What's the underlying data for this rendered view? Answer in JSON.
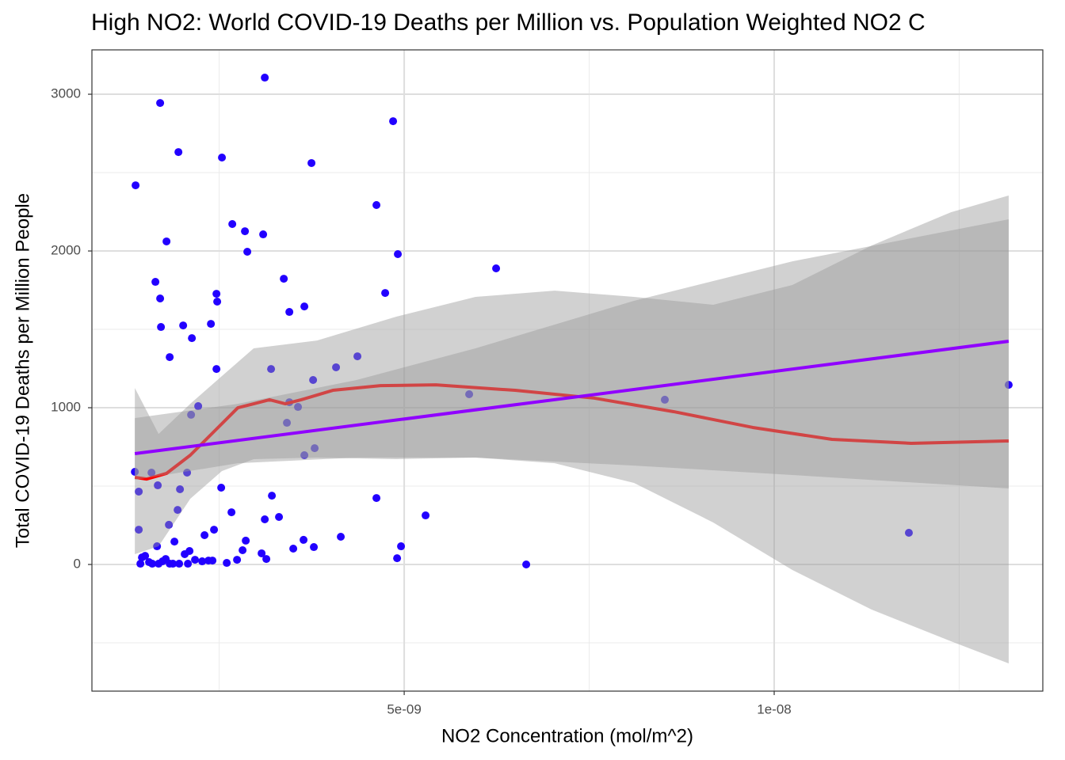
{
  "chart_data": {
    "type": "scatter",
    "title": "High NO2: World COVID-19 Deaths per Million vs. Population Weighted NO2 C",
    "x_label": "NO2 Concentration (mol/m^2)",
    "y_label": "Total COVID-19 Deaths per Million People",
    "xlim": [
      7.8e-10,
      1.363e-08
    ],
    "ylim": [
      -808,
      3283
    ],
    "xticks": [
      {
        "value": 5e-09,
        "label": "5e-09"
      },
      {
        "value": 1e-08,
        "label": "1e-08"
      }
    ],
    "yticks": [
      0,
      1000,
      2000,
      3000
    ],
    "x_minor_grid": [
      2.5e-09,
      7.5e-09,
      1.25e-08
    ],
    "y_minor_grid": [
      -500,
      500,
      1500,
      2500
    ],
    "grid": true,
    "points": {
      "color": "#2200ff",
      "x": [
        1.36e-09,
        1.37e-09,
        1.413e-09,
        1.413e-09,
        1.435e-09,
        1.456e-09,
        1.499e-09,
        1.552e-09,
        1.585e-09,
        1.595e-09,
        1.638e-09,
        1.66e-09,
        1.67e-09,
        1.681e-09,
        1.702e-09,
        1.702e-09,
        1.713e-09,
        1.734e-09,
        1.777e-09,
        1.788e-09,
        1.82e-09,
        1.831e-09,
        1.831e-09,
        1.874e-09,
        1.895e-09,
        1.938e-09,
        1.949e-09,
        1.959e-09,
        1.97e-09,
        2.013e-09,
        2.034e-09,
        2.066e-09,
        2.077e-09,
        2.099e-09,
        2.12e-09,
        2.131e-09,
        2.173e-09,
        2.216e-09,
        2.27e-09,
        2.302e-09,
        2.355e-09,
        2.388e-09,
        2.409e-09,
        2.43e-09,
        2.463e-09,
        2.463e-09,
        2.473e-09,
        2.527e-09,
        2.537e-09,
        2.602e-09,
        2.666e-09,
        2.677e-09,
        2.741e-09,
        2.816e-09,
        2.848e-09,
        2.859e-09,
        2.88e-09,
        3.073e-09,
        3.094e-09,
        3.116e-09,
        3.116e-09,
        3.137e-09,
        3.201e-09,
        3.212e-09,
        3.308e-09,
        3.373e-09,
        3.415e-09,
        3.448e-09,
        3.448e-09,
        3.501e-09,
        3.565e-09,
        3.64e-09,
        3.651e-09,
        3.651e-09,
        3.747e-09,
        3.769e-09,
        3.779e-09,
        3.79e-09,
        4.079e-09,
        4.143e-09,
        4.368e-09,
        4.625e-09,
        4.625e-09,
        4.743e-09,
        4.85e-09,
        4.904e-09,
        4.914e-09,
        4.957e-09,
        5.289e-09,
        5.878e-09,
        6.242e-09,
        6.649e-09,
        8.522e-09,
        1.182e-08,
        1.3169e-08
      ],
      "values": [
        591,
        2419,
        465,
        222,
        5,
        45,
        55,
        15,
        586,
        5,
        1803,
        116,
        505,
        5,
        1697,
        2944,
        1515,
        20,
        35,
        2061,
        253,
        1323,
        5,
        5,
        146,
        348,
        2631,
        5,
        480,
        1525,
        66,
        586,
        5,
        86,
        955,
        1444,
        30,
        1010,
        20,
        187,
        25,
        1535,
        25,
        222,
        1727,
        1247,
        1677,
        490,
        2596,
        10,
        333,
        2172,
        30,
        91,
        2126,
        152,
        1995,
        71,
        2106,
        3106,
        288,
        35,
        1247,
        439,
        303,
        1823,
        904,
        1611,
        1035,
        101,
        1005,
        157,
        697,
        1646,
        2561,
        1177,
        111,
        742,
        1258,
        177,
        1328,
        2293,
        424,
        1732,
        2828,
        40,
        1980,
        116,
        313,
        1086,
        1889,
        0,
        1051,
        202,
        1146
      ]
    },
    "loess": {
      "color": "#ff0000",
      "x": [
        1.36e-09,
        1.52e-09,
        1.788e-09,
        2.109e-09,
        2.43e-09,
        2.752e-09,
        2.966e-09,
        3.18e-09,
        3.394e-09,
        3.608e-09,
        4.036e-09,
        4.679e-09,
        5.428e-09,
        6.499e-09,
        7.57e-09,
        8.64e-09,
        9.711e-09,
        1.0782e-08,
        1.1852e-08,
        1.3169e-08
      ],
      "values": [
        556,
        545,
        581,
        697,
        848,
        1000,
        1025,
        1051,
        1025,
        1051,
        1111,
        1141,
        1146,
        1111,
        1061,
        975,
        874,
        798,
        773,
        788
      ]
    },
    "loess_band": {
      "color": "#999999",
      "x": [
        1.36e-09,
        1.681e-09,
        2.109e-09,
        2.537e-09,
        2.966e-09,
        3.822e-09,
        4.893e-09,
        5.964e-09,
        7.034e-09,
        8.105e-09,
        9.176e-09,
        1.0246e-08,
        1.1317e-08,
        1.2388e-08,
        1.3169e-08
      ],
      "lower": [
        66,
        116,
        419,
        596,
        672,
        682,
        672,
        682,
        646,
        520,
        268,
        -35,
        -288,
        -490,
        -631
      ],
      "upper": [
        1126,
        833,
        1025,
        1202,
        1379,
        1429,
        1581,
        1707,
        1747,
        1707,
        1657,
        1783,
        2035,
        2247,
        2354
      ]
    },
    "lm": {
      "color": "#9000ff",
      "x": [
        1.36e-09,
        1.3169e-08
      ],
      "values": [
        707,
        1424
      ]
    },
    "lm_band": {
      "color": "#999999",
      "x": [
        1.36e-09,
        2.752e-09,
        4.357e-09,
        5.964e-09,
        8.105e-09,
        1.0246e-08,
        1.3169e-08
      ],
      "lower": [
        540,
        646,
        682,
        682,
        631,
        571,
        485
      ],
      "upper": [
        934,
        1025,
        1177,
        1379,
        1682,
        1934,
        2202
      ]
    }
  }
}
